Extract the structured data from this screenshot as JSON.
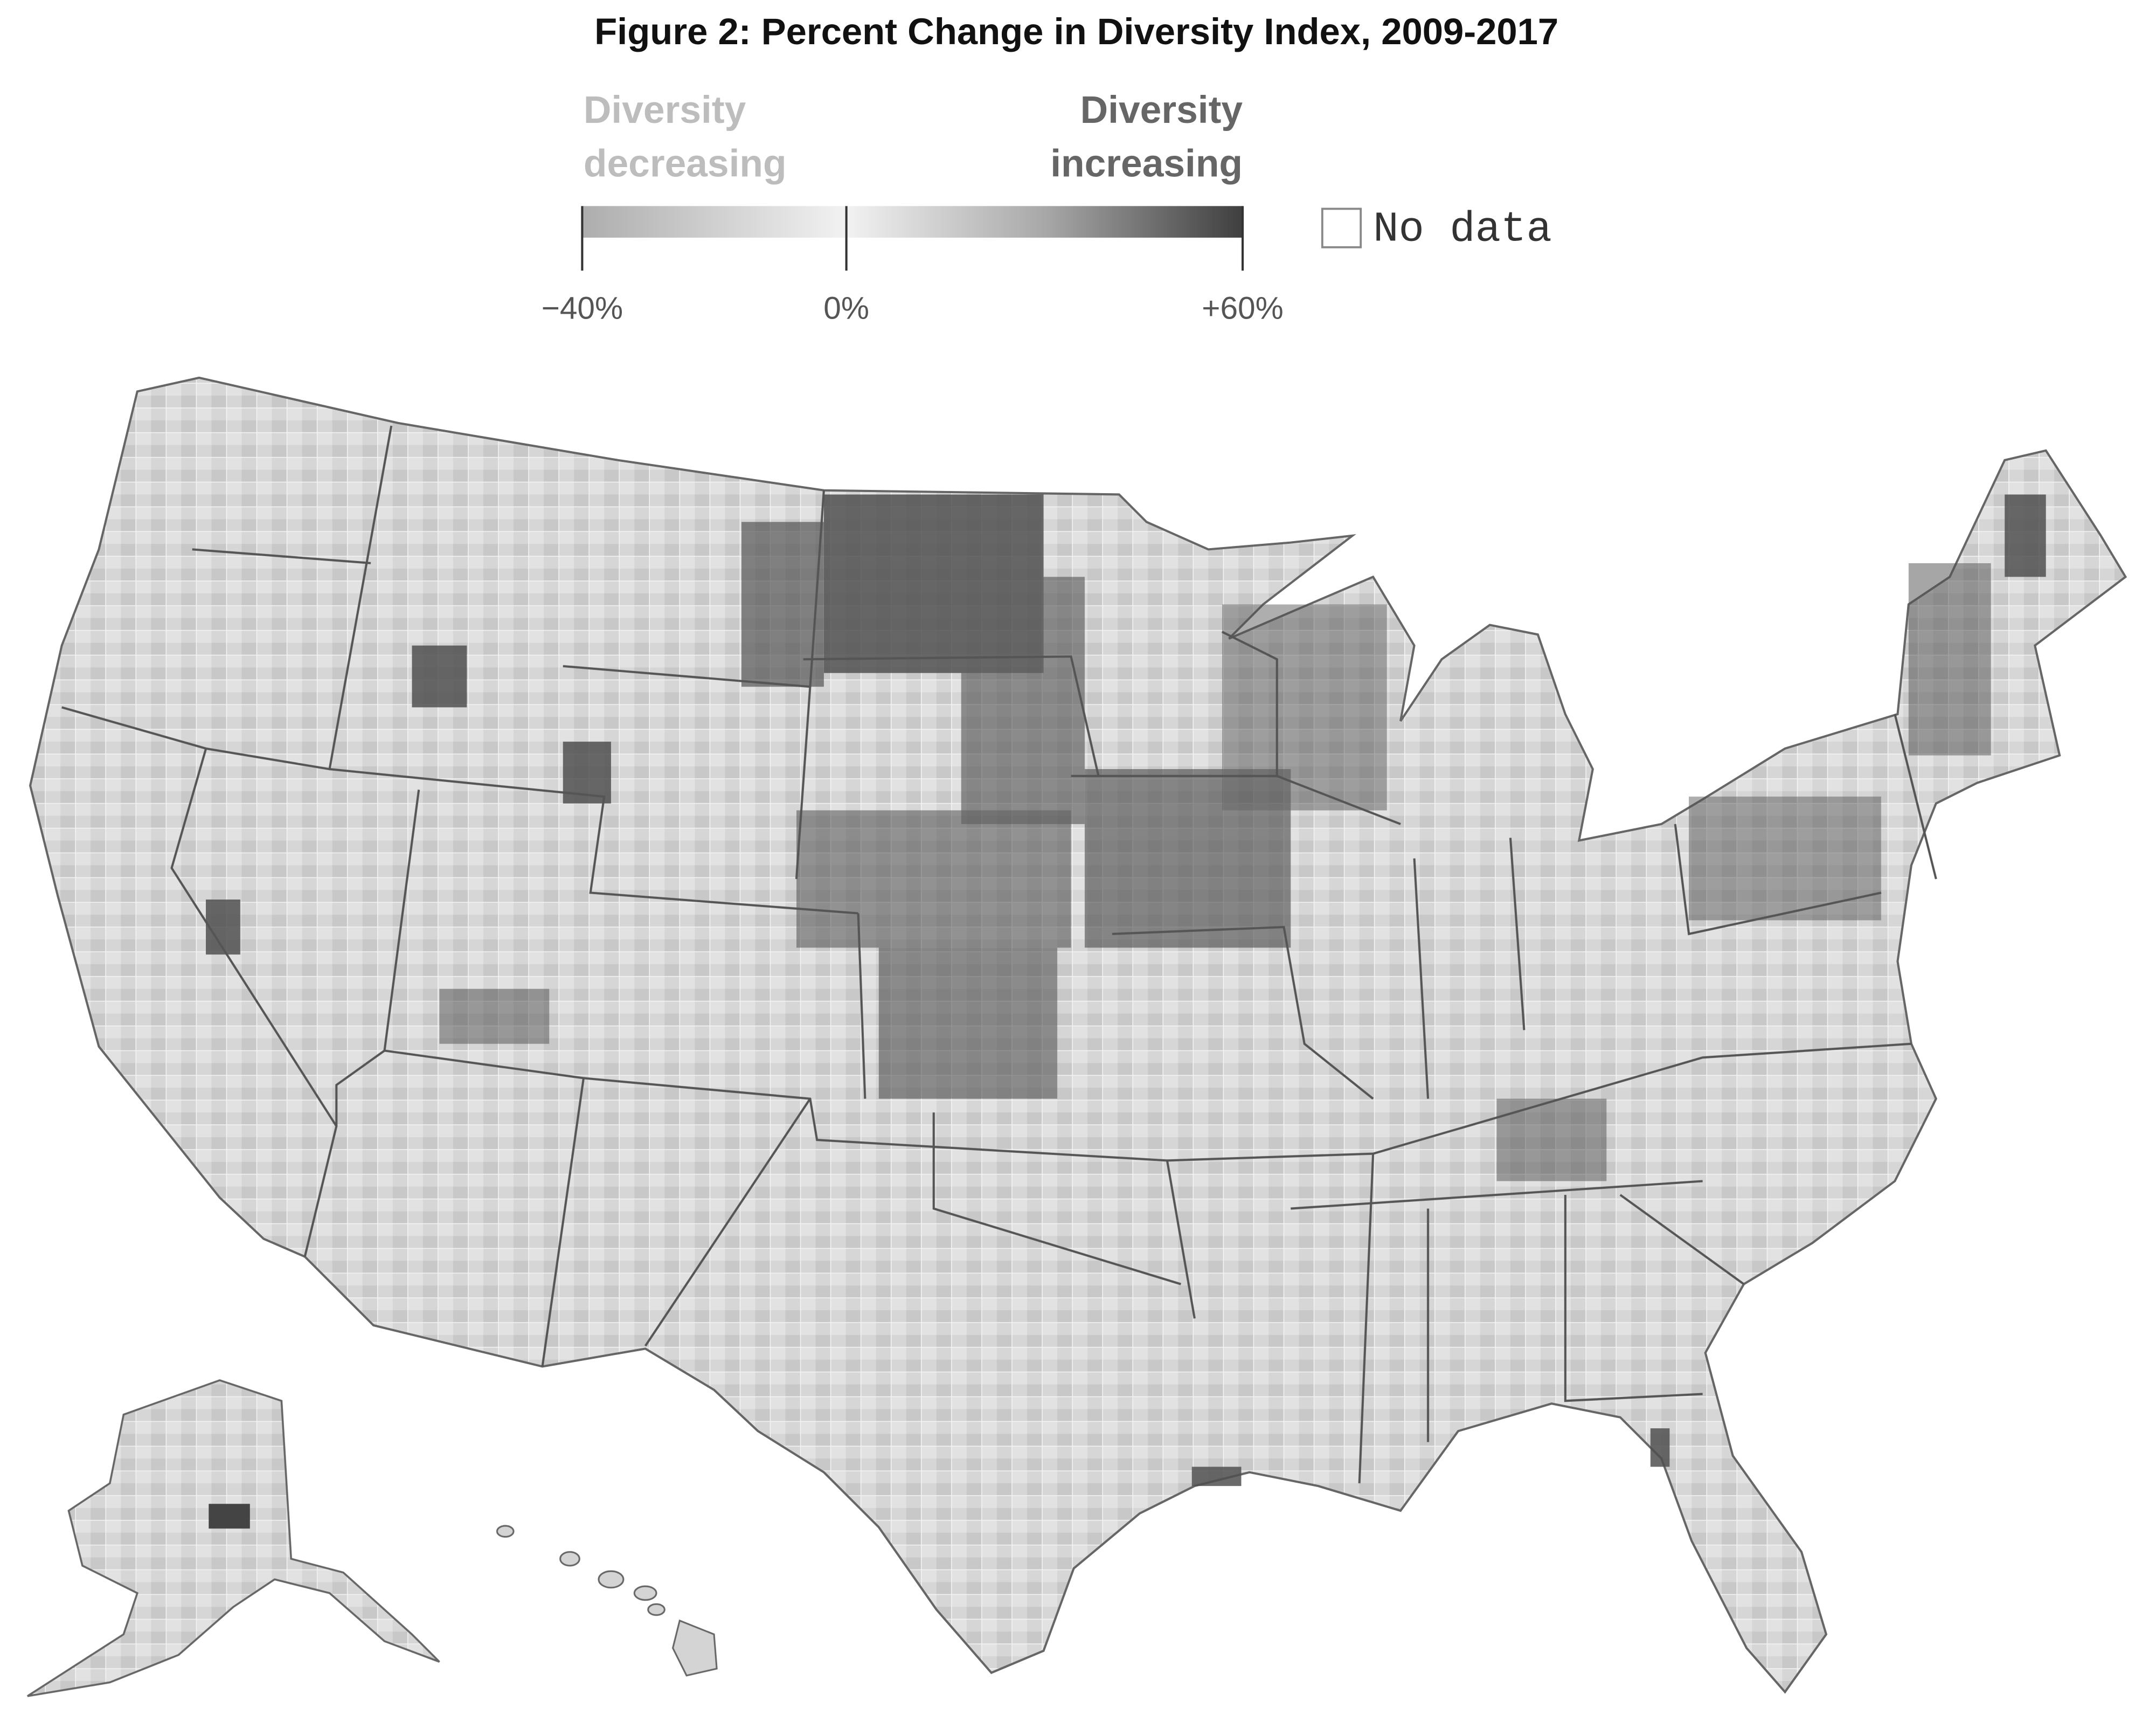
{
  "title": "Figure 2: Percent Change in Diversity Index, 2009-2017",
  "legend": {
    "decreasing_label": [
      "Diversity",
      "decreasing"
    ],
    "increasing_label": [
      "Diversity",
      "increasing"
    ],
    "ticks": [
      {
        "value": -40,
        "label": "−40%"
      },
      {
        "value": 0,
        "label": "0%"
      },
      {
        "value": 60,
        "label": "+60%"
      }
    ],
    "no_data_label": "No data"
  }
}
